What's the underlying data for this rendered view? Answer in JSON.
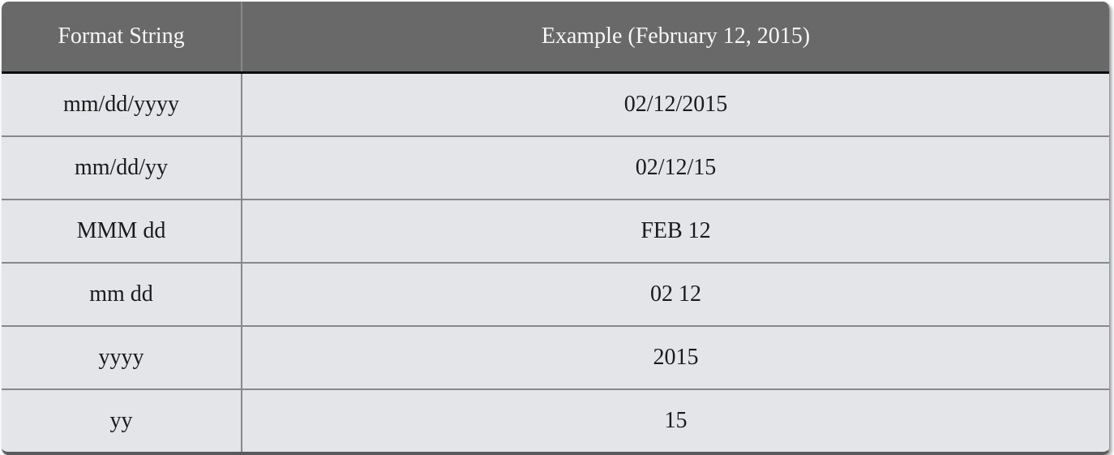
{
  "table": {
    "columns": [
      {
        "label": "Format String"
      },
      {
        "label": "Example (February 12, 2015)"
      }
    ],
    "rows": [
      {
        "format": "mm/dd/yyyy",
        "example": "02/12/2015"
      },
      {
        "format": "mm/dd/yy",
        "example": "02/12/15"
      },
      {
        "format": "MMM dd",
        "example": "FEB 12"
      },
      {
        "format": "mm dd",
        "example": "02 12"
      },
      {
        "format": "yyyy",
        "example": "2015"
      },
      {
        "format": "yy",
        "example": "15"
      }
    ],
    "colors": {
      "header_background": "#696969",
      "header_text": "#f7f7f7",
      "body_background": "#e3e5e9",
      "body_text": "#1a1a1a",
      "grid_line": "#888888",
      "header_rule": "#0d0d0d"
    }
  }
}
